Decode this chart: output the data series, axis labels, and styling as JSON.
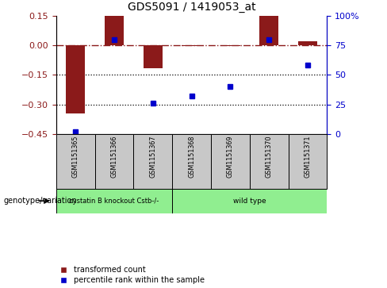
{
  "title": "GDS5091 / 1419053_at",
  "samples": [
    "GSM1151365",
    "GSM1151366",
    "GSM1151367",
    "GSM1151368",
    "GSM1151369",
    "GSM1151370",
    "GSM1151371"
  ],
  "red_values": [
    -0.345,
    0.15,
    -0.115,
    -0.005,
    -0.005,
    0.15,
    0.02
  ],
  "blue_values_raw": [
    2,
    80,
    26,
    32,
    40,
    80,
    58
  ],
  "ylim_left": [
    -0.45,
    0.15
  ],
  "ylim_right": [
    0,
    100
  ],
  "yticks_left": [
    0.15,
    0,
    -0.15,
    -0.3,
    -0.45
  ],
  "yticks_right": [
    100,
    75,
    50,
    25,
    0
  ],
  "hlines": [
    -0.15,
    -0.3
  ],
  "group1_label": "cystatin B knockout Cstb-/-",
  "group2_label": "wild type",
  "group1_samples": [
    0,
    1,
    2
  ],
  "group2_samples": [
    3,
    4,
    5,
    6
  ],
  "legend_red": "transformed count",
  "legend_blue": "percentile rank within the sample",
  "genotype_label": "genotype/variation",
  "bar_color": "#8B1A1A",
  "dot_color": "#0000CC",
  "group1_color": "#90EE90",
  "group2_color": "#90EE90",
  "sample_box_color": "#C8C8C8",
  "bg_color": "#FFFFFF",
  "bar_width": 0.5
}
